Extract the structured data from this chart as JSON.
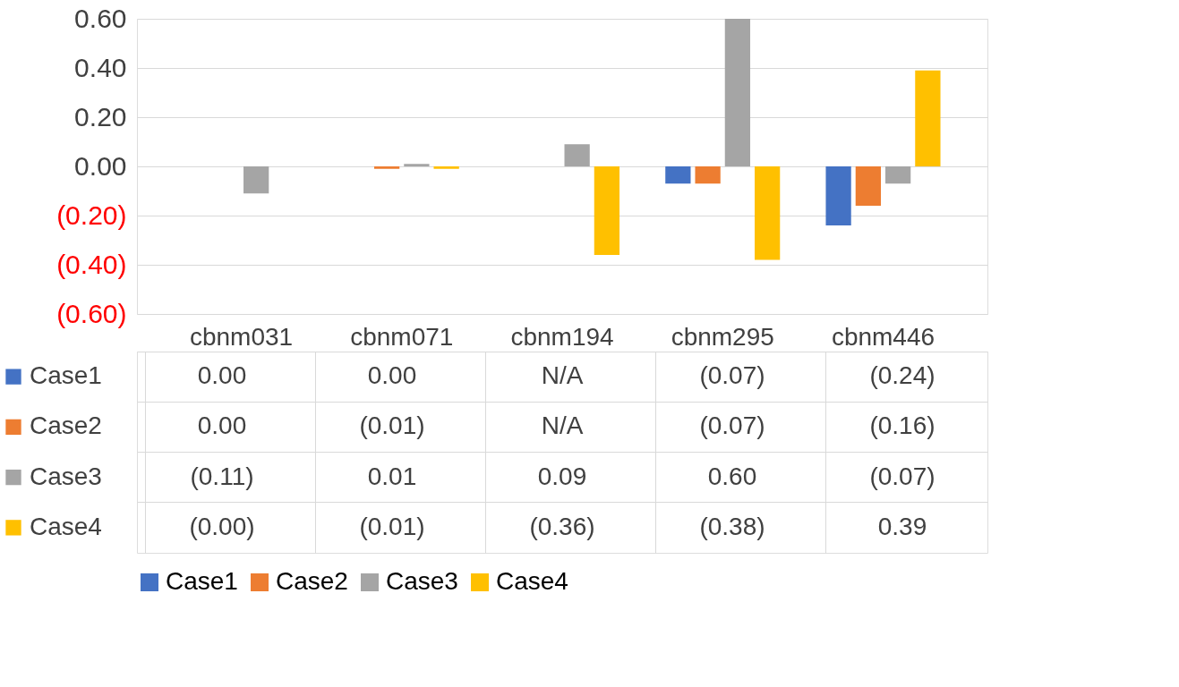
{
  "chart_data": {
    "type": "bar",
    "categories": [
      "cbnm031",
      "cbnm071",
      "cbnm194",
      "cbnm295",
      "cbnm446"
    ],
    "series": [
      {
        "name": "Case1",
        "color": "#4472c4",
        "values": [
          0.0,
          0.0,
          null,
          -0.07,
          -0.24
        ],
        "value_labels": [
          "0.00",
          "0.00",
          "N/A",
          "(0.07)",
          "(0.24)"
        ]
      },
      {
        "name": "Case2",
        "color": "#ed7d31",
        "values": [
          0.0,
          -0.01,
          null,
          -0.07,
          -0.16
        ],
        "value_labels": [
          "0.00",
          "(0.01)",
          "N/A",
          "(0.07)",
          "(0.16)"
        ]
      },
      {
        "name": "Case3",
        "color": "#a5a5a5",
        "values": [
          -0.11,
          0.01,
          0.09,
          0.6,
          -0.07
        ],
        "value_labels": [
          "(0.11)",
          "0.01",
          "0.09",
          "0.60",
          "(0.07)"
        ]
      },
      {
        "name": "Case4",
        "color": "#ffc000",
        "values": [
          -0.0,
          -0.01,
          -0.36,
          -0.38,
          0.39
        ],
        "value_labels": [
          "(0.00)",
          "(0.01)",
          "(0.36)",
          "(0.38)",
          "0.39"
        ]
      }
    ],
    "ylim": [
      -0.6,
      0.6
    ],
    "yticks": [
      {
        "value": 0.6,
        "label": "0.60"
      },
      {
        "value": 0.4,
        "label": "0.40"
      },
      {
        "value": 0.2,
        "label": "0.20"
      },
      {
        "value": 0,
        "label": "0.00"
      },
      {
        "value": -0.2,
        "label": "(0.20)"
      },
      {
        "value": -0.4,
        "label": "(0.40)"
      },
      {
        "value": -0.6,
        "label": "(0.60)"
      }
    ],
    "grid": "y",
    "legend": "bottom"
  }
}
